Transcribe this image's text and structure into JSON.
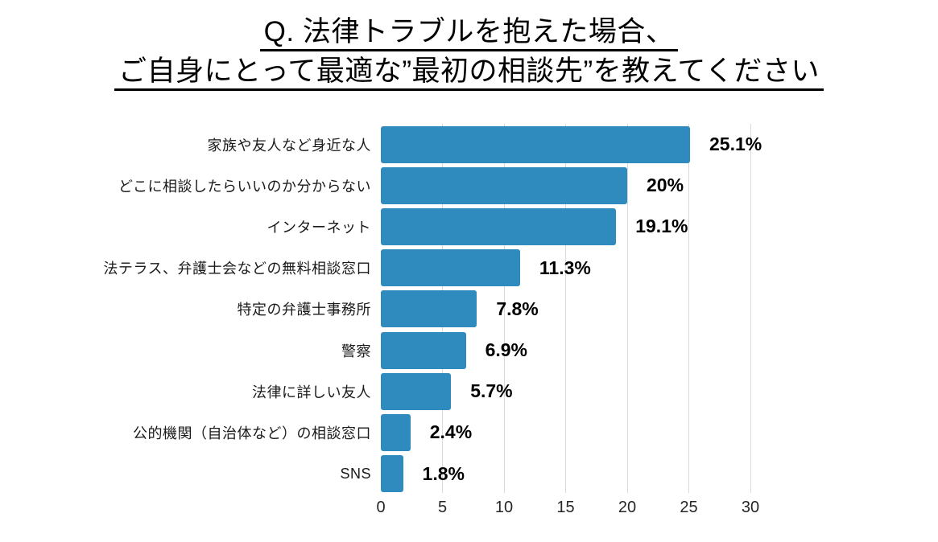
{
  "title": {
    "line1": "Q. 法律トラブルを抱えた場合、",
    "line2": "ご自身にとって最適な”最初の相談先”を教えてください"
  },
  "chart_data": {
    "type": "bar",
    "orientation": "horizontal",
    "title": "Q. 法律トラブルを抱えた場合、ご自身にとって最適な”最初の相談先”を教えてください",
    "categories": [
      "家族や友人など身近な人",
      "どこに相談したらいいのか分からない",
      "インターネット",
      "法テラス、弁護士会などの無料相談窓口",
      "特定の弁護士事務所",
      "警察",
      "法律に詳しい友人",
      "公的機関（自治体など）の相談窓口",
      "SNS"
    ],
    "values": [
      25.1,
      20,
      19.1,
      11.3,
      7.8,
      6.9,
      5.7,
      2.4,
      1.8
    ],
    "value_labels": [
      "25.1%",
      "20%",
      "19.1%",
      "11.3%",
      "7.8%",
      "6.9%",
      "5.7%",
      "2.4%",
      "1.8%"
    ],
    "xlabel": "",
    "ylabel": "",
    "xlim": [
      0,
      30
    ],
    "x_ticks": [
      0,
      5,
      10,
      15,
      20,
      25,
      30
    ],
    "grid": "vertical-gridlines",
    "legend": "none",
    "colors": {
      "bar": "#2F8BBE",
      "gridline": "#D9D9D9",
      "value_label": "#000000",
      "category_label": "#1A1A1A",
      "tick_label": "#262626",
      "title": "#000000",
      "background": "#FFFFFF"
    }
  }
}
